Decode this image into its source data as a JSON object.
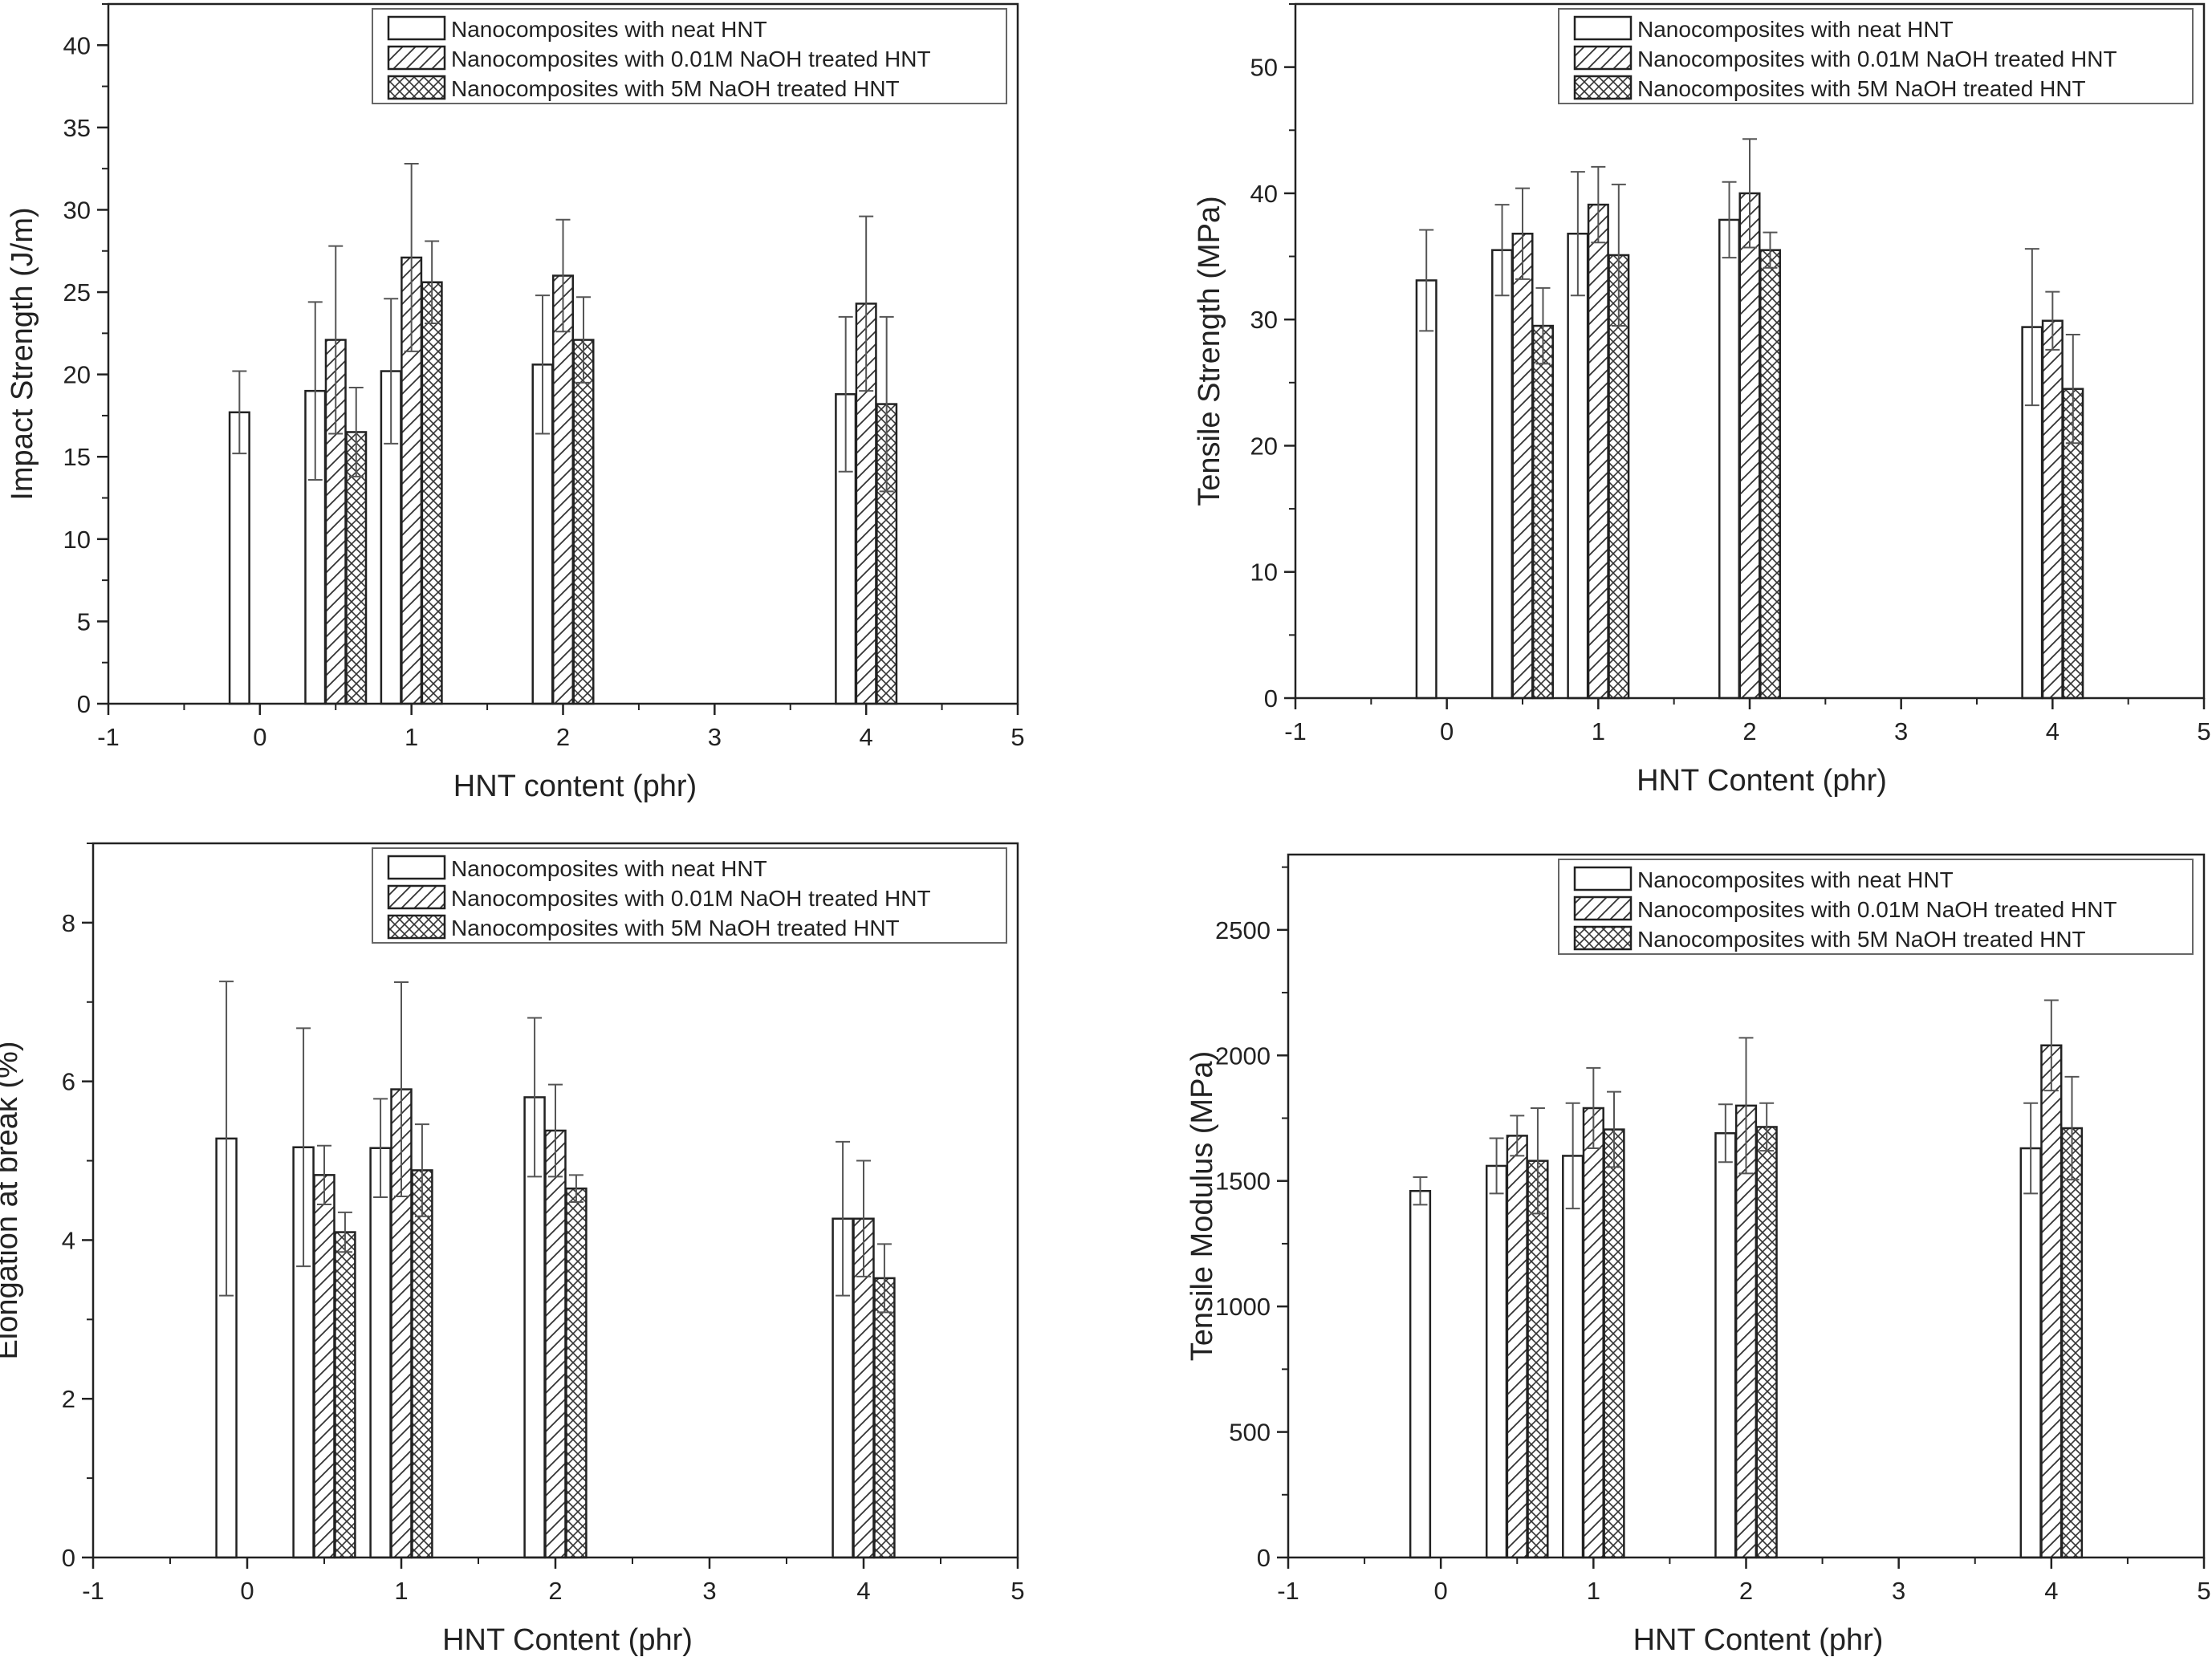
{
  "chart_data": [
    {
      "type": "bar",
      "xlabel": "HNT content (phr)",
      "ylabel": "Impact Strength (J/m)",
      "xlim": [
        -1,
        5
      ],
      "ylim": [
        0,
        42.5
      ],
      "xticks": [
        -1,
        0,
        1,
        2,
        3,
        4,
        5
      ],
      "yticks": [
        0,
        5,
        10,
        15,
        20,
        25,
        30,
        35,
        40
      ],
      "legend": "top-right",
      "grid": false,
      "x": [
        0,
        0.5,
        1,
        2,
        4
      ],
      "series": [
        {
          "name": "Nanocomposites with neat HNT",
          "pattern": "none",
          "values": [
            17.7,
            19.0,
            20.2,
            20.6,
            18.8
          ],
          "errors": [
            2.5,
            5.4,
            4.4,
            4.2,
            4.7
          ]
        },
        {
          "name": "Nanocomposites with 0.01M NaOH treated HNT",
          "pattern": "hatch",
          "values": [
            null,
            22.1,
            27.1,
            26.0,
            24.3
          ],
          "errors": [
            null,
            5.7,
            5.7,
            3.4,
            5.3
          ]
        },
        {
          "name": "Nanocomposites with 5M NaOH treated HNT",
          "pattern": "crosshatch",
          "values": [
            null,
            16.5,
            25.6,
            22.1,
            18.2
          ],
          "errors": [
            null,
            2.7,
            2.5,
            2.6,
            5.3
          ]
        }
      ]
    },
    {
      "type": "bar",
      "xlabel": "HNT Content (phr)",
      "ylabel": "Tensile Strength (MPa)",
      "xlim": [
        -1,
        5
      ],
      "ylim": [
        0,
        55
      ],
      "xticks": [
        -1,
        0,
        1,
        2,
        3,
        4,
        5
      ],
      "yticks": [
        0,
        10,
        20,
        30,
        40,
        50
      ],
      "legend": "top-right",
      "grid": false,
      "x": [
        0,
        0.5,
        1,
        2,
        4
      ],
      "series": [
        {
          "name": "Nanocomposites with neat HNT",
          "pattern": "none",
          "values": [
            33.1,
            35.5,
            36.8,
            37.9,
            29.4
          ],
          "errors": [
            4.0,
            3.6,
            4.9,
            3.0,
            6.2
          ]
        },
        {
          "name": "Nanocomposites with 0.01M NaOH treated HNT",
          "pattern": "hatch",
          "values": [
            null,
            36.8,
            39.1,
            40.0,
            29.9
          ],
          "errors": [
            null,
            3.6,
            3.0,
            4.3,
            2.3
          ]
        },
        {
          "name": "Nanocomposites with 5M NaOH treated HNT",
          "pattern": "crosshatch",
          "values": [
            null,
            29.5,
            35.1,
            35.5,
            24.5
          ],
          "errors": [
            null,
            3.0,
            5.6,
            1.4,
            4.3
          ]
        }
      ]
    },
    {
      "type": "bar",
      "xlabel": "HNT Content (phr)",
      "ylabel": "Elongation at break (%)",
      "xlim": [
        -1,
        5
      ],
      "ylim": [
        0,
        9
      ],
      "xticks": [
        -1,
        0,
        1,
        2,
        3,
        4,
        5
      ],
      "yticks": [
        0,
        2,
        4,
        6,
        8
      ],
      "legend": "top-right",
      "grid": false,
      "x": [
        0,
        0.5,
        1,
        2,
        4
      ],
      "series": [
        {
          "name": "Nanocomposites with neat HNT",
          "pattern": "none",
          "values": [
            5.28,
            5.17,
            5.16,
            5.8,
            4.27
          ],
          "errors": [
            1.98,
            1.5,
            0.62,
            1.0,
            0.97
          ]
        },
        {
          "name": "Nanocomposites with 0.01M NaOH treated HNT",
          "pattern": "hatch",
          "values": [
            null,
            4.82,
            5.9,
            5.38,
            4.27
          ],
          "errors": [
            null,
            0.37,
            1.35,
            0.58,
            0.73
          ]
        },
        {
          "name": "Nanocomposites with 5M NaOH treated HNT",
          "pattern": "crosshatch",
          "values": [
            null,
            4.1,
            4.88,
            4.65,
            3.52
          ],
          "errors": [
            null,
            0.25,
            0.58,
            0.17,
            0.43
          ]
        }
      ]
    },
    {
      "type": "bar",
      "xlabel": "HNT Content (phr)",
      "ylabel": "Tensile Modulus (MPa)",
      "xlim": [
        -1,
        5
      ],
      "ylim": [
        0,
        2800
      ],
      "xticks": [
        -1,
        0,
        1,
        2,
        3,
        4,
        5
      ],
      "yticks": [
        0,
        500,
        1000,
        1500,
        2000,
        2500
      ],
      "legend": "top-right",
      "grid": false,
      "x": [
        0,
        0.5,
        1,
        2,
        4
      ],
      "series": [
        {
          "name": "Nanocomposites with neat HNT",
          "pattern": "none",
          "values": [
            1460,
            1560,
            1600,
            1690,
            1630
          ],
          "errors": [
            55,
            110,
            210,
            115,
            180
          ]
        },
        {
          "name": "Nanocomposites with 0.01M NaOH treated HNT",
          "pattern": "hatch",
          "values": [
            null,
            1680,
            1790,
            1800,
            2040
          ],
          "errors": [
            null,
            80,
            160,
            270,
            180
          ]
        },
        {
          "name": "Nanocomposites with 5M NaOH treated HNT",
          "pattern": "crosshatch",
          "values": [
            null,
            1580,
            1705,
            1715,
            1710
          ],
          "errors": [
            null,
            210,
            150,
            95,
            205
          ]
        }
      ]
    }
  ]
}
